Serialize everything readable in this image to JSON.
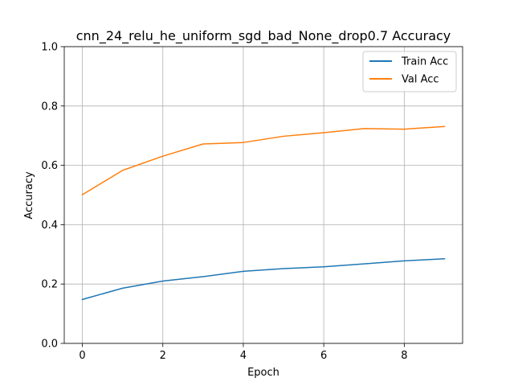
{
  "chart_data": {
    "type": "line",
    "title": "cnn_24_relu_he_uniform_sgd_bad_None_drop0.7 Accuracy",
    "xlabel": "Epoch",
    "ylabel": "Accuracy",
    "x": [
      0,
      1,
      2,
      3,
      4,
      5,
      6,
      7,
      8,
      9
    ],
    "xlim": [
      -0.45,
      9.45
    ],
    "ylim": [
      0,
      1
    ],
    "xticks": [
      0,
      2,
      4,
      6,
      8
    ],
    "yticks": [
      0.0,
      0.2,
      0.4,
      0.6,
      0.8,
      1.0
    ],
    "xtick_labels": [
      "0",
      "2",
      "4",
      "6",
      "8"
    ],
    "ytick_labels": [
      "0.0",
      "0.2",
      "0.4",
      "0.6",
      "0.8",
      "1.0"
    ],
    "grid": true,
    "legend": "top-right",
    "series": [
      {
        "name": "Train Acc",
        "color": "#1f77b4",
        "values": [
          0.148,
          0.186,
          0.21,
          0.225,
          0.243,
          0.252,
          0.258,
          0.268,
          0.278,
          0.285
        ]
      },
      {
        "name": "Val Acc",
        "color": "#ff7f0e",
        "values": [
          0.501,
          0.583,
          0.631,
          0.672,
          0.677,
          0.698,
          0.71,
          0.724,
          0.722,
          0.731
        ]
      }
    ]
  }
}
